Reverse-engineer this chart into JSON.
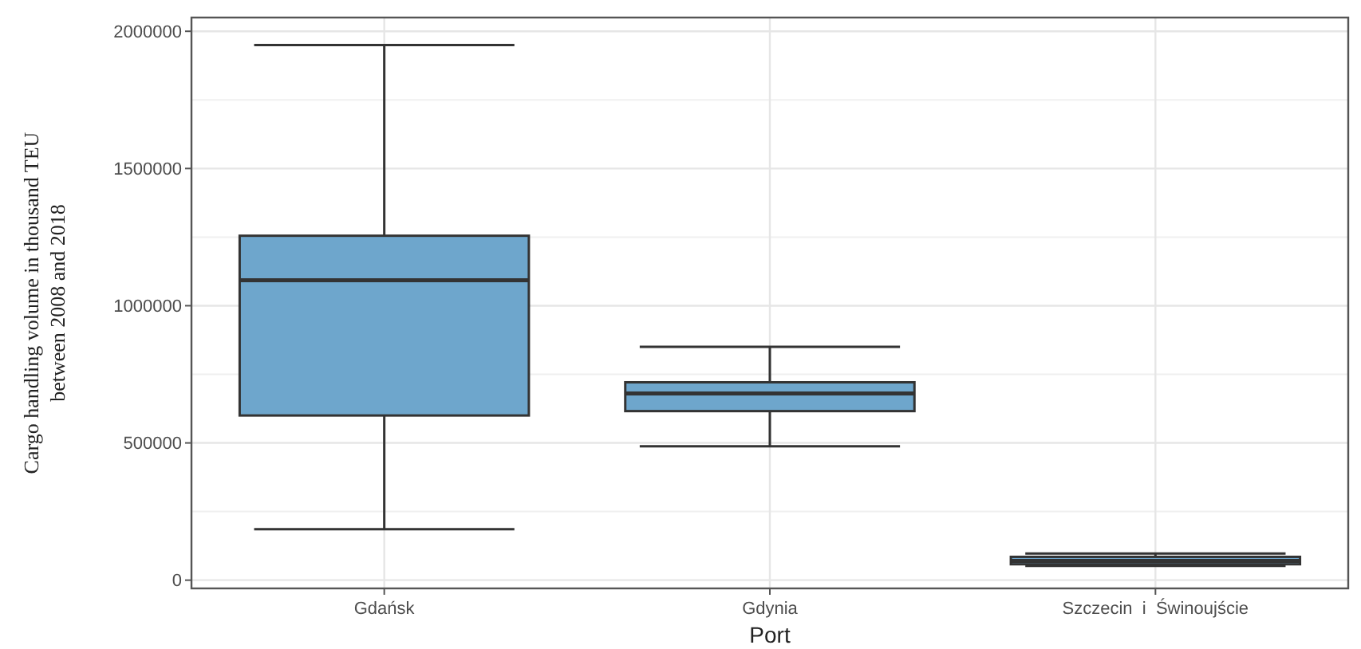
{
  "chart_data": {
    "type": "box",
    "xlabel": "Port",
    "ylabel": "Cargo handling volume in thousand TEU between 2008 and 2018",
    "categories": [
      "Gdańsk",
      "Gdynia",
      "Szczecin  i  Świnoujście"
    ],
    "boxes": [
      {
        "low": 186000,
        "q1": 600000,
        "median": 1093000,
        "q3": 1255000,
        "high": 1950000
      },
      {
        "low": 488000,
        "q1": 616000,
        "median": 680000,
        "q3": 721000,
        "high": 850000
      },
      {
        "low": 52000,
        "q1": 58000,
        "median": 70000,
        "q3": 85000,
        "high": 97000
      }
    ],
    "color": "#6ea6cc",
    "ylim": [
      -30000,
      2050000
    ],
    "yticks": [
      0,
      500000,
      1000000,
      1500000,
      2000000
    ],
    "grid": true
  }
}
